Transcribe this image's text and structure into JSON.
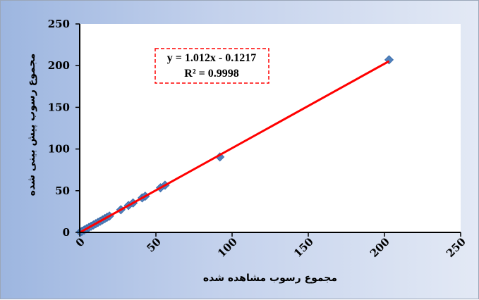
{
  "chart_data": {
    "type": "scatter",
    "xlabel": "مجموع رسوب مشاهده شده",
    "ylabel": "مجموع رسوب  پیش بینی شده",
    "xlim": [
      0,
      250
    ],
    "ylim": [
      0,
      250
    ],
    "x_ticks": [
      "0",
      "50",
      "100",
      "150",
      "200",
      "250"
    ],
    "y_ticks": [
      "0",
      "50",
      "100",
      "150",
      "200",
      "250"
    ],
    "grid": false,
    "legend": "none",
    "series": [
      {
        "marker": "diamond",
        "color": "#4f81bd",
        "points": [
          [
            0.5,
            0.4
          ],
          [
            1.5,
            1.4
          ],
          [
            3,
            2.9
          ],
          [
            4.5,
            4.4
          ],
          [
            6,
            5.9
          ],
          [
            7.5,
            7.4
          ],
          [
            9,
            8.9
          ],
          [
            10.5,
            10.4
          ],
          [
            12,
            12
          ],
          [
            13.5,
            13.5
          ],
          [
            15,
            15
          ],
          [
            16.5,
            16.6
          ],
          [
            18,
            18.2
          ],
          [
            19.5,
            19.6
          ],
          [
            27,
            27.2
          ],
          [
            32,
            32.3
          ],
          [
            35,
            35.3
          ],
          [
            41,
            41.4
          ],
          [
            43,
            43.4
          ],
          [
            53,
            53.5
          ],
          [
            56,
            56.6
          ],
          [
            92,
            90.5
          ],
          [
            203,
            207
          ]
        ]
      }
    ],
    "trendline": {
      "slope": 1.012,
      "intercept": -0.1217,
      "x_range": [
        0,
        203
      ],
      "color": "#ff0000",
      "equation_label": "y = 1.012x - 0.1217",
      "r2_label": "R² = 0.9998"
    }
  }
}
